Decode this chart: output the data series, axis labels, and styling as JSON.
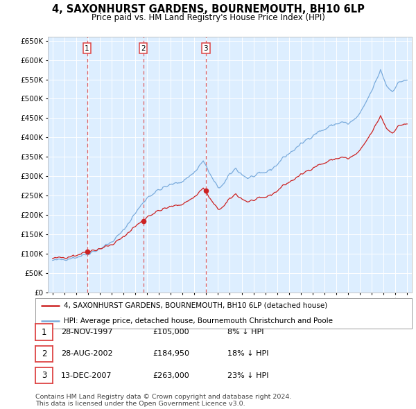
{
  "title": "4, SAXONHURST GARDENS, BOURNEMOUTH, BH10 6LP",
  "subtitle": "Price paid vs. HM Land Registry's House Price Index (HPI)",
  "legend_red": "4, SAXONHURST GARDENS, BOURNEMOUTH, BH10 6LP (detached house)",
  "legend_blue": "HPI: Average price, detached house, Bournemouth Christchurch and Poole",
  "footer": "Contains HM Land Registry data © Crown copyright and database right 2024.\nThis data is licensed under the Open Government Licence v3.0.",
  "sales": [
    {
      "num": 1,
      "date": "28-NOV-1997",
      "price": 105000,
      "hpi_diff": "8% ↓ HPI",
      "year": 1997.917
    },
    {
      "num": 2,
      "date": "28-AUG-2002",
      "price": 184950,
      "hpi_diff": "18% ↓ HPI",
      "year": 2002.667
    },
    {
      "num": 3,
      "date": "13-DEC-2007",
      "price": 263000,
      "hpi_diff": "23% ↓ HPI",
      "year": 2007.958
    }
  ],
  "hpi_color": "#7aabdc",
  "red_color": "#cc2222",
  "plot_bg": "#ddeeff",
  "grid_color": "#ffffff",
  "vline_color": "#dd4444",
  "ylim_min": 0,
  "ylim_max": 660000,
  "ytick_step": 50000,
  "xlim_start": 1994.6,
  "xlim_end": 2025.4
}
